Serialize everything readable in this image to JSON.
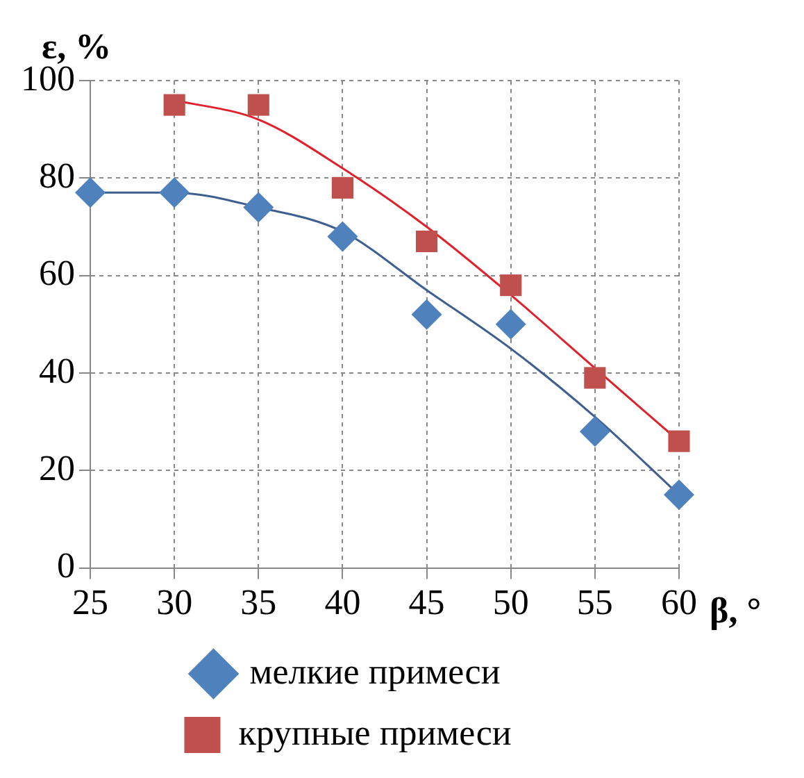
{
  "chart_data": {
    "type": "scatter",
    "xlabel": "β, °",
    "ylabel": "ε, %",
    "xlim": [
      25,
      60
    ],
    "xticks": [
      25,
      30,
      35,
      40,
      45,
      50,
      55,
      60
    ],
    "ylim": [
      0,
      100
    ],
    "yticks": [
      0,
      20,
      40,
      60,
      80,
      100
    ],
    "grid": true,
    "legend": "bottom",
    "series": [
      {
        "name": "мелкие примеси",
        "marker": "diamond",
        "color": "#4f81bd",
        "x": [
          25,
          30,
          35,
          40,
          45,
          50,
          55,
          60
        ],
        "values": [
          77,
          77,
          74,
          68,
          52,
          50,
          28,
          15
        ]
      },
      {
        "name": "крупные примеси",
        "marker": "square",
        "color": "#c0504d",
        "x": [
          30,
          35,
          40,
          45,
          50,
          55,
          60
        ],
        "values": [
          95,
          95,
          78,
          67,
          58,
          39,
          26
        ]
      },
      {
        "type": "line",
        "marker": "none",
        "line_style": "solid",
        "color": "#3e5f8f",
        "x": [
          25,
          30,
          35,
          40,
          45,
          50,
          55,
          60
        ],
        "values": [
          77,
          77,
          74,
          69,
          57,
          45,
          31,
          15
        ]
      },
      {
        "type": "line",
        "marker": "none",
        "line_style": "solid",
        "color": "#e0202a",
        "x": [
          30,
          35,
          40,
          45,
          50,
          55,
          60
        ],
        "values": [
          96,
          92,
          82,
          70,
          56,
          41,
          26
        ]
      }
    ]
  }
}
